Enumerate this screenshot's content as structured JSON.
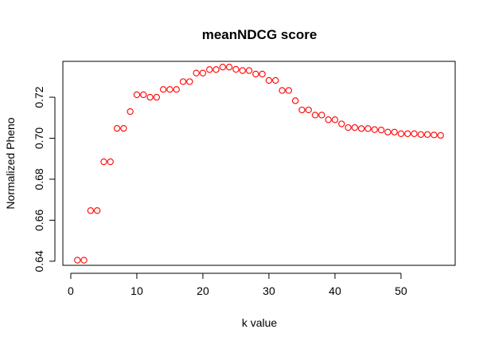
{
  "chart_data": {
    "type": "scatter",
    "title": "meanNDCG score",
    "xlabel": "k value",
    "ylabel": "Normalized Pheno",
    "xlim": [
      -1.2,
      58.2
    ],
    "ylim": [
      0.638,
      0.7375
    ],
    "xticks": [
      0,
      10,
      20,
      30,
      40,
      50
    ],
    "xtick_labels": [
      "0",
      "10",
      "20",
      "30",
      "40",
      "50"
    ],
    "yticks": [
      0.64,
      0.66,
      0.68,
      0.7,
      0.72
    ],
    "ytick_labels": [
      "0.64",
      "0.66",
      "0.68",
      "0.70",
      "0.72"
    ],
    "grid": false,
    "marker": "open-circle",
    "point_color": "#ff0000",
    "series": [
      {
        "x": [
          1,
          2,
          3,
          4,
          5,
          6,
          7,
          8,
          9,
          10,
          11,
          12,
          13,
          14,
          15,
          16,
          17,
          18,
          19,
          20,
          21,
          22,
          23,
          24,
          25,
          26,
          27,
          28,
          29,
          30,
          31,
          32,
          33,
          34,
          35,
          36,
          37,
          38,
          39,
          40,
          41,
          42,
          43,
          44,
          45,
          46,
          47,
          48,
          49,
          50,
          51,
          52,
          53,
          54,
          55,
          56
        ],
        "y": [
          0.6405,
          0.6405,
          0.6647,
          0.6647,
          0.6885,
          0.6885,
          0.7048,
          0.7048,
          0.713,
          0.7212,
          0.7212,
          0.72,
          0.72,
          0.7238,
          0.7238,
          0.7238,
          0.7276,
          0.7276,
          0.7318,
          0.7318,
          0.7335,
          0.7335,
          0.7347,
          0.7347,
          0.7336,
          0.733,
          0.733,
          0.7313,
          0.7313,
          0.7282,
          0.7282,
          0.7233,
          0.7233,
          0.7183,
          0.7138,
          0.7138,
          0.7113,
          0.7113,
          0.709,
          0.709,
          0.707,
          0.7052,
          0.7052,
          0.7047,
          0.7047,
          0.7042,
          0.704,
          0.703,
          0.703,
          0.7022,
          0.7022,
          0.7022,
          0.7018,
          0.7018,
          0.7016,
          0.7014
        ]
      }
    ]
  }
}
